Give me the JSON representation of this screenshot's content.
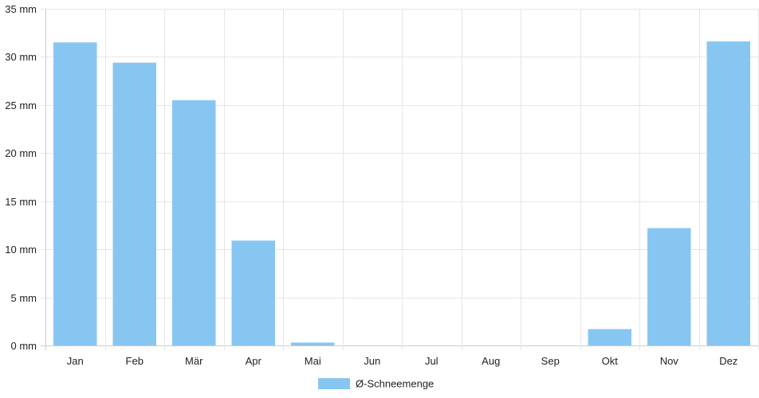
{
  "chart_data": {
    "type": "bar",
    "categories": [
      "Jan",
      "Feb",
      "Mär",
      "Apr",
      "Mai",
      "Jun",
      "Jul",
      "Aug",
      "Sep",
      "Okt",
      "Nov",
      "Dez"
    ],
    "series": [
      {
        "name": "Ø-Schneemenge",
        "values": [
          31.5,
          29.4,
          25.5,
          10.9,
          0.3,
          0,
          0,
          0,
          0,
          1.7,
          12.2,
          31.6
        ],
        "color": "#88c6f2"
      }
    ],
    "y_ticks": [
      "0 mm",
      "5 mm",
      "10 mm",
      "15 mm",
      "20 mm",
      "25 mm",
      "30 mm",
      "35 mm"
    ],
    "ylim": [
      0,
      35
    ],
    "y_unit": "mm",
    "grid": true,
    "legend_position": "bottom-center",
    "grid_color": "#e6e6e6"
  }
}
